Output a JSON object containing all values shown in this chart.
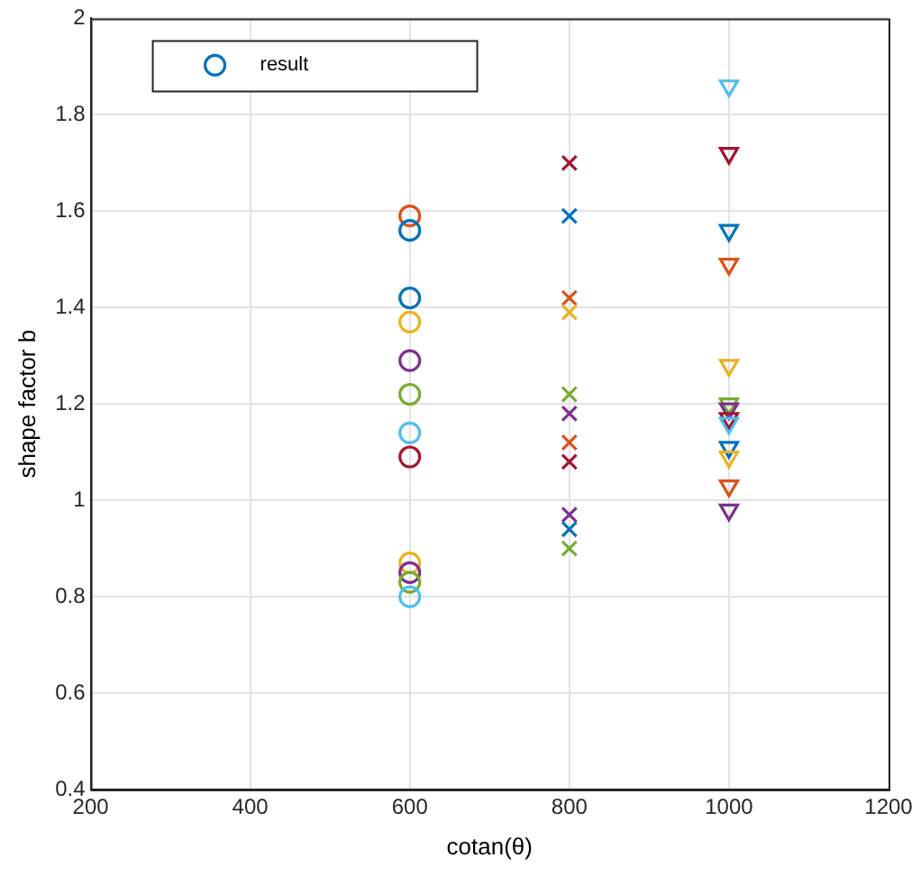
{
  "chart_data": {
    "type": "scatter",
    "xlabel": "cotan(θ)",
    "ylabel": "shape factor b",
    "xlim": [
      200,
      1200
    ],
    "xticks": [
      200,
      400,
      600,
      800,
      1000,
      1200
    ],
    "ylim": [
      0.4,
      2
    ],
    "yticks": [
      0.4,
      0.6,
      0.8,
      1,
      1.2,
      1.4,
      1.6,
      1.8,
      2
    ],
    "grid": true,
    "legend": "top left",
    "series": [
      {
        "name": "result",
        "type": "scatter",
        "marker": "circle",
        "color": "#0072bd",
        "x": [
          600,
          600,
          600,
          600,
          600,
          600,
          600,
          600,
          600,
          600,
          600,
          600
        ],
        "values": [
          1.59,
          1.56,
          1.42,
          1.37,
          1.29,
          1.22,
          1.14,
          1.09,
          0.87,
          0.85,
          0.83,
          0.8
        ],
        "colors": [
          "#d95319",
          "#0072bd",
          "#0072bd",
          "#edb120",
          "#7e2f8e",
          "#77ac30",
          "#4dbeee",
          "#a2142f",
          "#edb120",
          "#7e2f8e",
          "#77ac30",
          "#4dbeee"
        ]
      },
      {
        "type": "scatter",
        "marker": "cross",
        "x": [
          800,
          800,
          800,
          800,
          800,
          800,
          800,
          800,
          800,
          800,
          800
        ],
        "values": [
          1.7,
          1.59,
          1.42,
          1.39,
          1.22,
          1.18,
          1.12,
          1.08,
          0.97,
          0.94,
          0.9
        ],
        "colors": [
          "#a2142f",
          "#0072bd",
          "#d95319",
          "#edb120",
          "#77ac30",
          "#7e2f8e",
          "#d95319",
          "#a2142f",
          "#7e2f8e",
          "#0072bd",
          "#77ac30"
        ]
      },
      {
        "type": "scatter",
        "marker": "triangle",
        "x": [
          1000,
          1000,
          1000,
          1000,
          1000,
          1000,
          1000,
          1000,
          1000,
          1000,
          1000,
          1000,
          1000
        ],
        "values": [
          1.86,
          1.72,
          1.56,
          1.49,
          1.28,
          1.2,
          1.19,
          1.17,
          1.16,
          1.11,
          1.09,
          1.03,
          0.98
        ],
        "colors": [
          "#4dbeee",
          "#a2142f",
          "#0072bd",
          "#d95319",
          "#edb120",
          "#77ac30",
          "#7e2f8e",
          "#a2142f",
          "#4dbeee",
          "#0072bd",
          "#edb120",
          "#d95319",
          "#7e2f8e"
        ]
      }
    ]
  }
}
